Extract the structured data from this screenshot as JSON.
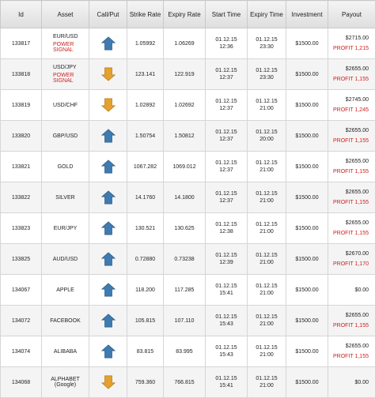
{
  "headers": {
    "id": "Id",
    "asset": "Asset",
    "callput": "Call/Put",
    "strike": "Strike Rate",
    "expiry_rate": "Expiry Rate",
    "start": "Start Time",
    "expiry_time": "Expiry Time",
    "investment": "Investment",
    "payout": "Payout"
  },
  "colors": {
    "up": "#3f7bb0",
    "down": "#e3a12f",
    "profit": "#d02020"
  },
  "rows": [
    {
      "id": "133817",
      "asset": "EUR/USD",
      "signal": "POWER SIGNAL",
      "direction": "up",
      "strike": "1.05992",
      "expiry_rate": "1.06269",
      "start_date": "01.12.15",
      "start_time": "12:36",
      "exp_date": "01.12.15",
      "exp_time": "23:30",
      "investment": "$1500.00",
      "payout": "$2715.00",
      "profit": "PROFIT 1,215"
    },
    {
      "id": "133818",
      "asset": "USD/JPY",
      "signal": "POWER SIGNAL",
      "direction": "down",
      "strike": "123.141",
      "expiry_rate": "122.919",
      "start_date": "01.12.15",
      "start_time": "12:37",
      "exp_date": "01.12.15",
      "exp_time": "23:30",
      "investment": "$1500.00",
      "payout": "$2655.00",
      "profit": "PROFIT 1,155"
    },
    {
      "id": "133819",
      "asset": "USD/CHF",
      "direction": "down",
      "strike": "1.02892",
      "expiry_rate": "1.02692",
      "start_date": "01.12.15",
      "start_time": "12:37",
      "exp_date": "01.12.15",
      "exp_time": "21:00",
      "investment": "$1500.00",
      "payout": "$2745.00",
      "profit": "PROFIT 1,245"
    },
    {
      "id": "133820",
      "asset": "GBP/USD",
      "direction": "up",
      "strike": "1.50754",
      "expiry_rate": "1.50812",
      "start_date": "01.12.15",
      "start_time": "12:37",
      "exp_date": "01.12.15",
      "exp_time": "20:00",
      "investment": "$1500.00",
      "payout": "$2655.00",
      "profit": "PROFIT 1,155"
    },
    {
      "id": "133821",
      "asset": "GOLD",
      "direction": "up",
      "strike": "1067.282",
      "expiry_rate": "1069.012",
      "start_date": "01.12.15",
      "start_time": "12:37",
      "exp_date": "01.12.15",
      "exp_time": "21:00",
      "investment": "$1500.00",
      "payout": "$2655.00",
      "profit": "PROFIT 1,155"
    },
    {
      "id": "133822",
      "asset": "SILVER",
      "direction": "up",
      "strike": "14.1760",
      "expiry_rate": "14.1800",
      "start_date": "01.12.15",
      "start_time": "12:37",
      "exp_date": "01.12.15",
      "exp_time": "21:00",
      "investment": "$1500.00",
      "payout": "$2655.00",
      "profit": "PROFIT 1,155"
    },
    {
      "id": "133823",
      "asset": "EUR/JPY",
      "direction": "up",
      "strike": "130.521",
      "expiry_rate": "130.625",
      "start_date": "01.12.15",
      "start_time": "12:38",
      "exp_date": "01.12.15",
      "exp_time": "21:00",
      "investment": "$1500.00",
      "payout": "$2655.00",
      "profit": "PROFIT 1,155"
    },
    {
      "id": "133825",
      "asset": "AUD/USD",
      "direction": "up",
      "strike": "0.72880",
      "expiry_rate": "0.73238",
      "start_date": "01.12.15",
      "start_time": "12:39",
      "exp_date": "01.12.15",
      "exp_time": "21:00",
      "investment": "$1500.00",
      "payout": "$2670.00",
      "profit": "PROFIT 1,170"
    },
    {
      "id": "134067",
      "asset": "APPLE",
      "direction": "up",
      "strike": "118.200",
      "expiry_rate": "117.285",
      "start_date": "01.12.15",
      "start_time": "15:41",
      "exp_date": "01.12.15",
      "exp_time": "21:00",
      "investment": "$1500.00",
      "payout": "$0.00",
      "profit": ""
    },
    {
      "id": "134072",
      "asset": "FACEBOOK",
      "direction": "up",
      "strike": "105.815",
      "expiry_rate": "107.110",
      "start_date": "01.12.15",
      "start_time": "15:43",
      "exp_date": "01.12.15",
      "exp_time": "21:00",
      "investment": "$1500.00",
      "payout": "$2655.00",
      "profit": "PROFIT 1,155"
    },
    {
      "id": "134074",
      "asset": "ALIBABA",
      "direction": "up",
      "strike": "83.815",
      "expiry_rate": "83.995",
      "start_date": "01.12.15",
      "start_time": "15:43",
      "exp_date": "01.12.15",
      "exp_time": "21:00",
      "investment": "$1500.00",
      "payout": "$2655.00",
      "profit": "PROFIT 1,155"
    },
    {
      "id": "134068",
      "asset": "ALPHABET",
      "asset_sub": "(Google)",
      "direction": "down",
      "strike": "759.360",
      "expiry_rate": "766.815",
      "start_date": "01.12.15",
      "start_time": "15:41",
      "exp_date": "01.12.15",
      "exp_time": "21:00",
      "investment": "$1500.00",
      "payout": "$0.00",
      "profit": ""
    }
  ]
}
